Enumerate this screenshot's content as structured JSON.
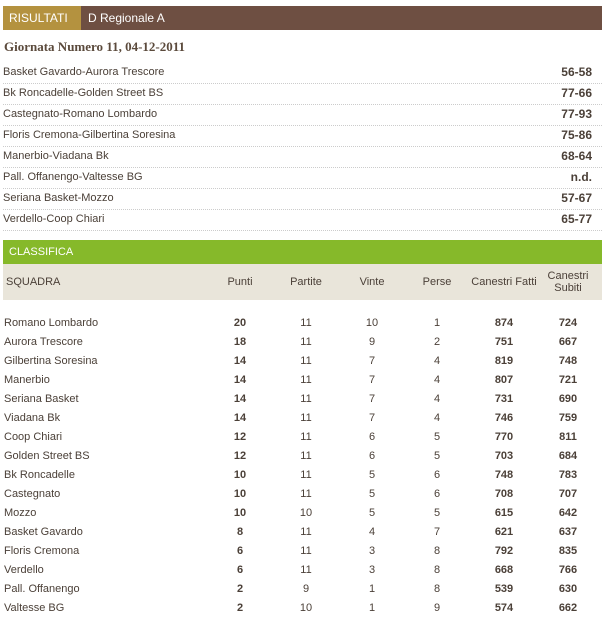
{
  "header": {
    "tab": "RISULTATI",
    "league": "D Regionale A"
  },
  "giornata": "Giornata Numero 11, 04-12-2011",
  "results": [
    {
      "match": "Basket Gavardo-Aurora Trescore",
      "score": "56-58"
    },
    {
      "match": "Bk Roncadelle-Golden Street BS",
      "score": "77-66"
    },
    {
      "match": "Castegnato-Romano Lombardo",
      "score": "77-93"
    },
    {
      "match": "Floris Cremona-Gilbertina Soresina",
      "score": "75-86"
    },
    {
      "match": "Manerbio-Viadana Bk",
      "score": "68-64"
    },
    {
      "match": "Pall. Offanengo-Valtesse BG",
      "score": "n.d."
    },
    {
      "match": "Seriana Basket-Mozzo",
      "score": "57-67"
    },
    {
      "match": "Verdello-Coop Chiari",
      "score": "65-77"
    }
  ],
  "classifica": {
    "title": "CLASSIFICA",
    "columns": [
      "SQUADRA",
      "Punti",
      "Partite",
      "Vinte",
      "Perse",
      "Canestri Fatti",
      "Canestri Subiti"
    ],
    "rows": [
      [
        "Romano Lombardo",
        20,
        11,
        10,
        1,
        874,
        724
      ],
      [
        "Aurora Trescore",
        18,
        11,
        9,
        2,
        751,
        667
      ],
      [
        "Gilbertina Soresina",
        14,
        11,
        7,
        4,
        819,
        748
      ],
      [
        "Manerbio",
        14,
        11,
        7,
        4,
        807,
        721
      ],
      [
        "Seriana Basket",
        14,
        11,
        7,
        4,
        731,
        690
      ],
      [
        "Viadana Bk",
        14,
        11,
        7,
        4,
        746,
        759
      ],
      [
        "Coop Chiari",
        12,
        11,
        6,
        5,
        770,
        811
      ],
      [
        "Golden Street BS",
        12,
        11,
        6,
        5,
        703,
        684
      ],
      [
        "Bk Roncadelle",
        10,
        11,
        5,
        6,
        748,
        783
      ],
      [
        "Castegnato",
        10,
        11,
        5,
        6,
        708,
        707
      ],
      [
        "Mozzo",
        10,
        10,
        5,
        5,
        615,
        642
      ],
      [
        "Basket Gavardo",
        8,
        11,
        4,
        7,
        621,
        637
      ],
      [
        "Floris Cremona",
        6,
        11,
        3,
        8,
        792,
        835
      ],
      [
        "Verdello",
        6,
        11,
        3,
        8,
        668,
        766
      ],
      [
        "Pall. Offanengo",
        2,
        9,
        1,
        8,
        539,
        630
      ],
      [
        "Valtesse BG",
        2,
        10,
        1,
        9,
        574,
        662
      ]
    ]
  }
}
